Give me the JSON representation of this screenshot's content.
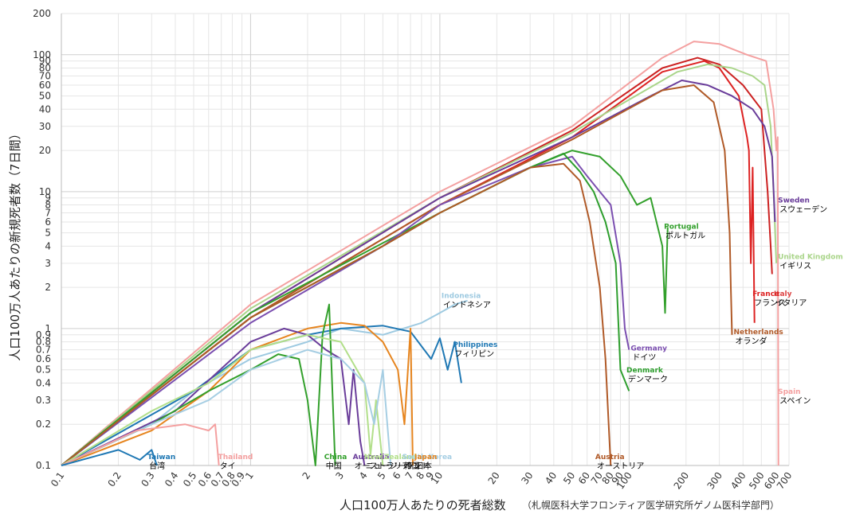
{
  "chart_data": {
    "type": "line",
    "title": "",
    "xlabel": "人口100万人あたりの死者総数",
    "ylabel": "人口100万人あたりの新規死者数（7日間）",
    "credit": "（札幌医科大学フロンティア医学研究所ゲノム医科学部門）",
    "xscale": "log",
    "yscale": "log",
    "xlim": [
      0.1,
      700
    ],
    "ylim": [
      0.1,
      200
    ],
    "grid": true,
    "legend": "none",
    "x_ticks": [
      "0.1",
      "0.2",
      "0.3",
      "0.4",
      "0.5",
      "0.6",
      "0.7",
      "0.8",
      "0.9",
      "1",
      "2",
      "3",
      "4",
      "5",
      "6",
      "7",
      "8",
      "9",
      "10",
      "20",
      "30",
      "40",
      "50",
      "60",
      "70",
      "80",
      "90",
      "100",
      "200",
      "300",
      "400",
      "500",
      "600",
      "700"
    ],
    "y_ticks": [
      "0.1",
      "0.2",
      "0.3",
      "0.4",
      "0.5",
      "0.6",
      "0.7",
      "0.8",
      "0.9",
      "1",
      "2",
      "3",
      "4",
      "5",
      "6",
      "7",
      "8",
      "9",
      "10",
      "20",
      "30",
      "40",
      "50",
      "60",
      "70",
      "80",
      "90",
      "100",
      "200"
    ],
    "series": [
      {
        "name": "Spain",
        "label_ja": "スペイン",
        "color": "#f4a0a0",
        "x": [
          0.1,
          1,
          10,
          50,
          150,
          220,
          300,
          420,
          530,
          580,
          600,
          610,
          615
        ],
        "y": [
          0.1,
          1.5,
          10,
          30,
          95,
          125,
          120,
          100,
          90,
          40,
          20,
          25,
          0.1
        ]
      },
      {
        "name": "Italy",
        "label_ja": "イタリア",
        "color": "#cc2222",
        "x": [
          0.1,
          1,
          10,
          50,
          150,
          230,
          300,
          400,
          500,
          540,
          560,
          570
        ],
        "y": [
          0.1,
          1.3,
          9,
          28,
          80,
          95,
          85,
          60,
          40,
          10,
          4,
          2.5
        ]
      },
      {
        "name": "France",
        "label_ja": "フランス",
        "color": "#dd2222",
        "x": [
          0.1,
          1,
          10,
          50,
          150,
          250,
          300,
          380,
          420,
          430,
          440,
          450,
          460
        ],
        "y": [
          0.1,
          1.2,
          8,
          25,
          75,
          90,
          80,
          50,
          25,
          20,
          3,
          15,
          1.1
        ]
      },
      {
        "name": "United Kingdom",
        "label_ja": "イギリス",
        "color": "#aad58a",
        "x": [
          0.1,
          1,
          10,
          50,
          180,
          260,
          350,
          450,
          520,
          560,
          580,
          600
        ],
        "y": [
          0.1,
          1.4,
          9,
          27,
          75,
          85,
          80,
          70,
          60,
          30,
          10,
          3
        ]
      },
      {
        "name": "Sweden",
        "label_ja": "スウェーデン",
        "color": "#6a3d9a",
        "x": [
          0.1,
          1,
          10,
          50,
          130,
          190,
          260,
          350,
          450,
          520,
          570,
          590
        ],
        "y": [
          0.1,
          1.3,
          9,
          25,
          50,
          65,
          60,
          50,
          40,
          30,
          18,
          6
        ]
      },
      {
        "name": "Netherlands",
        "label_ja": "オランダ",
        "color": "#b05a28",
        "x": [
          0.1,
          1,
          10,
          50,
          150,
          220,
          280,
          320,
          340,
          345,
          350
        ],
        "y": [
          0.1,
          1.2,
          8,
          24,
          55,
          60,
          45,
          20,
          5,
          2,
          0.9
        ]
      },
      {
        "name": "Portugal",
        "label_ja": "ポルトガル",
        "color": "#33a02c",
        "x": [
          0.1,
          1,
          10,
          30,
          50,
          70,
          90,
          110,
          130,
          150,
          155,
          160
        ],
        "y": [
          0.1,
          1.3,
          7,
          15,
          20,
          18,
          13,
          8,
          9,
          4,
          1.3,
          5.5
        ]
      },
      {
        "name": "Germany",
        "label_ja": "ドイツ",
        "color": "#7b4fb0",
        "x": [
          0.1,
          1,
          5,
          10,
          30,
          50,
          60,
          70,
          80,
          90,
          95,
          100
        ],
        "y": [
          0.1,
          1.1,
          4,
          8,
          15,
          18,
          13,
          10,
          8,
          3,
          1,
          0.7
        ]
      },
      {
        "name": "Denmark",
        "label_ja": "デンマーク",
        "color": "#2e9e2e",
        "x": [
          0.1,
          1,
          5,
          10,
          30,
          45,
          55,
          65,
          75,
          85,
          90,
          100
        ],
        "y": [
          0.1,
          1.2,
          4,
          7,
          15,
          19,
          14,
          10,
          6,
          3,
          0.5,
          0.35
        ]
      },
      {
        "name": "Austria",
        "label_ja": "オーストリア",
        "color": "#b05a28",
        "x": [
          0.1,
          1,
          5,
          10,
          30,
          45,
          55,
          62,
          70,
          75,
          78,
          80
        ],
        "y": [
          0.1,
          1.2,
          4,
          7,
          15,
          16,
          12,
          6,
          2,
          0.6,
          0.2,
          0.1
        ]
      },
      {
        "name": "Indonesia",
        "label_ja": "インドネシア",
        "color": "#9ecae1",
        "x": [
          0.1,
          0.3,
          0.5,
          1,
          2,
          3,
          5,
          8,
          10,
          12,
          14
        ],
        "y": [
          0.1,
          0.2,
          0.35,
          0.6,
          0.8,
          1.0,
          0.9,
          1.1,
          1.3,
          1.5,
          1.6
        ]
      },
      {
        "name": "Philippines",
        "label_ja": "フィリピン",
        "color": "#1f78b4",
        "x": [
          0.1,
          0.5,
          1,
          2,
          3,
          5,
          7,
          9,
          10,
          11,
          12,
          13
        ],
        "y": [
          0.1,
          0.35,
          0.7,
          0.9,
          1.0,
          1.05,
          0.95,
          0.6,
          0.85,
          0.5,
          0.8,
          0.4
        ]
      },
      {
        "name": "Japan",
        "label_ja": "日本",
        "color": "#e6851f",
        "x": [
          0.1,
          0.3,
          0.6,
          1,
          2,
          3,
          4,
          5,
          6,
          6.5,
          7,
          7.2
        ],
        "y": [
          0.1,
          0.18,
          0.35,
          0.7,
          1.0,
          1.1,
          1.05,
          0.8,
          0.5,
          0.2,
          1.0,
          0.1
        ]
      },
      {
        "name": "Australia",
        "label_ja": "オーストラリア",
        "color": "#6a3d9a",
        "x": [
          0.1,
          0.4,
          1,
          1.5,
          2,
          2.5,
          3,
          3.3,
          3.5,
          3.8,
          4
        ],
        "y": [
          0.1,
          0.25,
          0.8,
          1.0,
          0.9,
          0.7,
          0.6,
          0.2,
          0.5,
          0.15,
          0.1
        ]
      },
      {
        "name": "China",
        "label_ja": "中国",
        "color": "#33a02c",
        "x": [
          0.1,
          0.3,
          0.6,
          1,
          1.4,
          1.8,
          2,
          2.2,
          2.4,
          2.6,
          2.8
        ],
        "y": [
          0.1,
          0.2,
          0.35,
          0.5,
          0.65,
          0.6,
          0.3,
          0.1,
          0.9,
          1.5,
          0.1
        ]
      },
      {
        "name": "New Zealand",
        "label_ja": "ニュージーランド",
        "color": "#b2df8a",
        "x": [
          0.1,
          0.3,
          0.6,
          1,
          2,
          3,
          4,
          4.3,
          4.6,
          5
        ],
        "y": [
          0.1,
          0.25,
          0.4,
          0.7,
          0.9,
          0.8,
          0.4,
          0.12,
          0.3,
          0.1
        ]
      },
      {
        "name": "South Korea",
        "label_ja": "韓国",
        "color": "#a6cee3",
        "x": [
          0.1,
          0.3,
          0.6,
          1,
          2,
          3,
          4,
          4.5,
          5,
          5.5
        ],
        "y": [
          0.1,
          0.2,
          0.3,
          0.5,
          0.7,
          0.6,
          0.4,
          0.2,
          0.5,
          0.1
        ]
      },
      {
        "name": "Thailand",
        "label_ja": "タイ",
        "color": "#f4a0a0",
        "x": [
          0.1,
          0.25,
          0.45,
          0.6,
          0.65,
          0.68
        ],
        "y": [
          0.1,
          0.18,
          0.2,
          0.18,
          0.2,
          0.1
        ]
      },
      {
        "name": "Taiwan",
        "label_ja": "台湾",
        "color": "#1f78b4",
        "x": [
          0.1,
          0.2,
          0.26,
          0.3,
          0.32
        ],
        "y": [
          0.1,
          0.13,
          0.11,
          0.13,
          0.1
        ]
      }
    ],
    "labels": [
      {
        "text": "Sweden",
        "ja": "スウェーデン",
        "color": "#6a3d9a",
        "x": 600,
        "y": 7.5
      },
      {
        "text": "United Kingdom",
        "ja": "イギリス",
        "color": "#aad58a",
        "x": 600,
        "y": 2.9
      },
      {
        "text": "Italy",
        "ja": "イタリア",
        "color": "#dd4444",
        "x": 570,
        "y": 1.55
      },
      {
        "text": "France",
        "ja": "フランス",
        "color": "#dd2222",
        "x": 440,
        "y": 1.55
      },
      {
        "text": "Netherlands",
        "ja": "オランダ",
        "color": "#b05a28",
        "x": 350,
        "y": 0.82
      },
      {
        "text": "Spain",
        "ja": "スペイン",
        "color": "#f4a0a0",
        "x": 600,
        "y": 0.3
      },
      {
        "text": "Portugal",
        "ja": "ポルトガル",
        "color": "#33a02c",
        "x": 150,
        "y": 4.8
      },
      {
        "text": "Germany",
        "ja": "ドイツ",
        "color": "#7b4fb0",
        "x": 100,
        "y": 0.62
      },
      {
        "text": "Denmark",
        "ja": "デンマーク",
        "color": "#2e9e2e",
        "x": 95,
        "y": 0.43
      },
      {
        "text": "Indonesia",
        "ja": "インドネシア",
        "color": "#9ecae1",
        "x": 10,
        "y": 1.5
      },
      {
        "text": "Philippines",
        "ja": "フィリピン",
        "color": "#1f78b4",
        "x": 11.5,
        "y": 0.66
      },
      {
        "text": "Austria",
        "ja": "オーストリア",
        "color": "#b05a28",
        "x": 65,
        "y": 0.1
      },
      {
        "text": "Thailand",
        "ja": "タイ",
        "color": "#f4a0a0",
        "x": 0.66,
        "y": 0.1
      },
      {
        "text": "Taiwan",
        "ja": "台湾",
        "color": "#1f78b4",
        "x": 0.28,
        "y": 0.1
      },
      {
        "text": "China",
        "ja": "中国",
        "color": "#33a02c",
        "x": 2.4,
        "y": 0.1
      },
      {
        "text": "Australia",
        "ja": "オーストラリア",
        "color": "#6a3d9a",
        "x": 3.4,
        "y": 0.1
      },
      {
        "text": "New Zealand",
        "ja": "ニュージーランド",
        "color": "#b2df8a",
        "x": 3.9,
        "y": 0.1
      },
      {
        "text": "South Korea",
        "ja": "韓国",
        "color": "#a6cee3",
        "x": 6.2,
        "y": 0.1
      },
      {
        "text": "Japan",
        "ja": "日本",
        "color": "#e6851f",
        "x": 7.2,
        "y": 0.1
      }
    ]
  }
}
